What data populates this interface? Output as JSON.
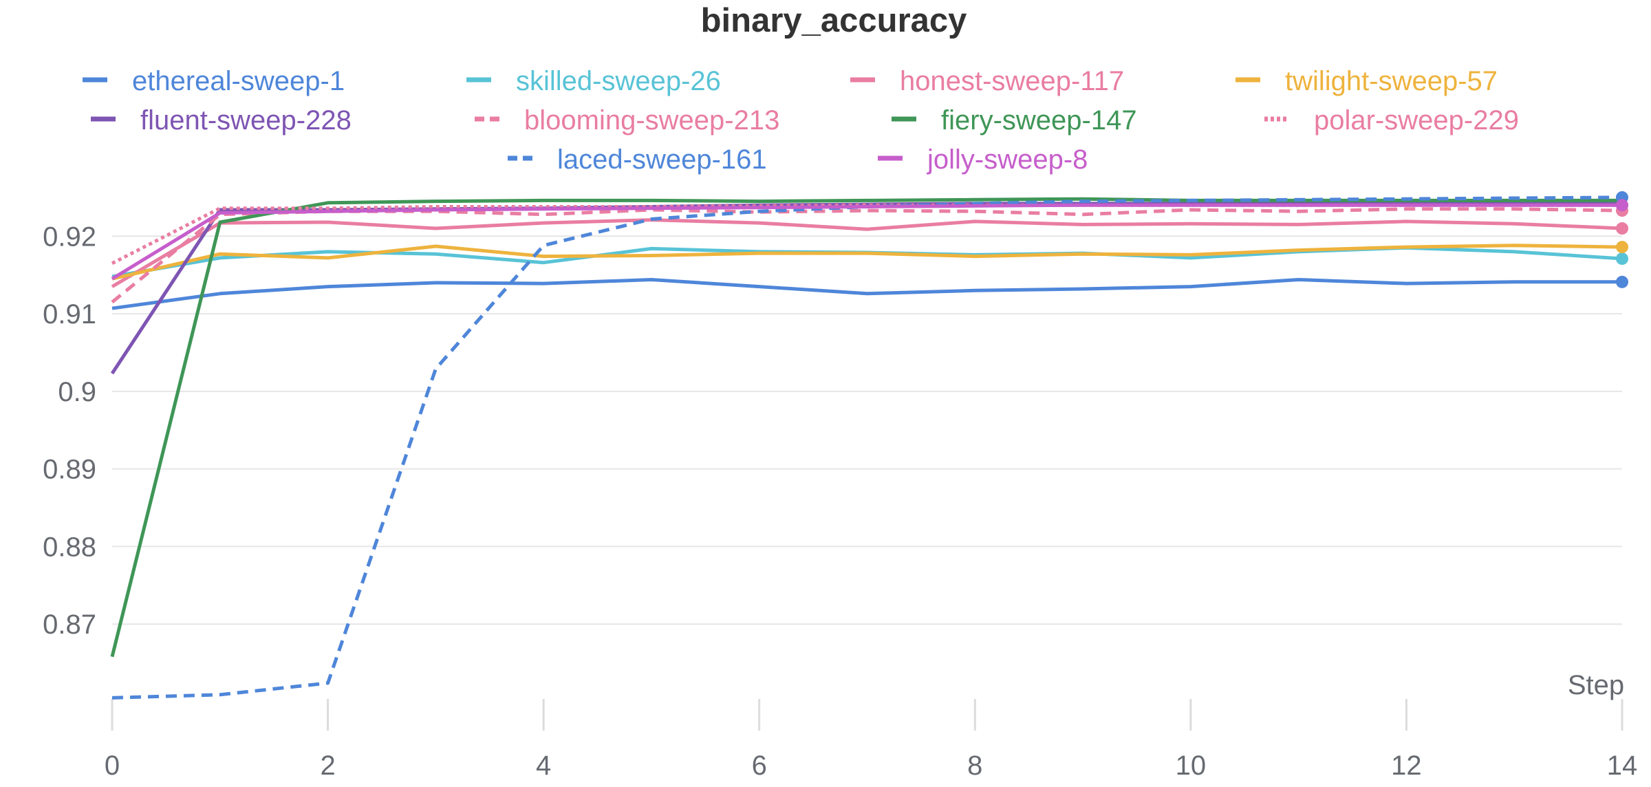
{
  "chart_data": {
    "type": "line",
    "title": "binary_accuracy",
    "xlabel": "Step",
    "ylabel": "",
    "xlim": [
      0,
      14
    ],
    "ylim": [
      0.86,
      0.9265
    ],
    "xticks": [
      0,
      2,
      4,
      6,
      8,
      10,
      12,
      14
    ],
    "yticks": [
      0.87,
      0.88,
      0.89,
      0.9,
      0.91,
      0.92
    ],
    "ytick_labels": [
      "0.87",
      "0.88",
      "0.89",
      "0.9",
      "0.91",
      "0.92"
    ],
    "grid": true,
    "legend_position": "top",
    "x": [
      0,
      1,
      2,
      3,
      4,
      5,
      6,
      7,
      8,
      9,
      10,
      11,
      12,
      13,
      14
    ],
    "series": [
      {
        "name": "ethereal-sweep-1",
        "color": "#4e86d9",
        "dash": "solid",
        "end_marker": true,
        "values": [
          0.9107,
          0.9126,
          0.9135,
          0.914,
          0.9139,
          0.9144,
          0.9135,
          0.9126,
          0.913,
          0.9132,
          0.9135,
          0.9144,
          0.9139,
          0.9141,
          0.9141
        ]
      },
      {
        "name": "skilled-sweep-26",
        "color": "#58c3d6",
        "dash": "solid",
        "end_marker": true,
        "values": [
          0.9148,
          0.9172,
          0.918,
          0.9177,
          0.9166,
          0.9184,
          0.918,
          0.9179,
          0.9176,
          0.9178,
          0.9172,
          0.918,
          0.9185,
          0.918,
          0.9171
        ]
      },
      {
        "name": "honest-sweep-117",
        "color": "#e97da2",
        "dash": "solid",
        "end_marker": true,
        "values": [
          0.9135,
          0.9217,
          0.9218,
          0.921,
          0.9217,
          0.9221,
          0.9217,
          0.9209,
          0.9219,
          0.9215,
          0.9216,
          0.9215,
          0.9219,
          0.9216,
          0.921
        ]
      },
      {
        "name": "twilight-sweep-57",
        "color": "#eeb33d",
        "dash": "solid",
        "end_marker": true,
        "values": [
          0.9145,
          0.9177,
          0.9172,
          0.9187,
          0.9174,
          0.9175,
          0.9178,
          0.9178,
          0.9174,
          0.9177,
          0.9176,
          0.9182,
          0.9186,
          0.9188,
          0.9186
        ]
      },
      {
        "name": "fluent-sweep-228",
        "color": "#7e55b3",
        "dash": "solid",
        "end_marker": false,
        "values": [
          0.9023,
          0.9234,
          0.9234,
          0.9235,
          0.9236,
          0.9238,
          0.924,
          0.9241,
          0.9242,
          0.9242,
          0.9242,
          0.9242,
          0.9242,
          0.9242,
          0.9242
        ]
      },
      {
        "name": "blooming-sweep-213",
        "color": "#e97da2",
        "dash": "dash",
        "end_marker": true,
        "values": [
          0.9115,
          0.9228,
          0.9232,
          0.9232,
          0.9228,
          0.9234,
          0.9231,
          0.9233,
          0.9232,
          0.9228,
          0.9234,
          0.9232,
          0.9235,
          0.9235,
          0.9233
        ]
      },
      {
        "name": "fiery-sweep-147",
        "color": "#3f9657",
        "dash": "solid",
        "end_marker": false,
        "values": [
          0.8658,
          0.9218,
          0.9243,
          0.9245,
          0.9246,
          0.9246,
          0.9245,
          0.9246,
          0.9247,
          0.9248,
          0.9246,
          0.9246,
          0.9246,
          0.9246,
          0.9246
        ]
      },
      {
        "name": "polar-sweep-229",
        "color": "#e97da2",
        "dash": "dot",
        "end_marker": true,
        "values": [
          0.9165,
          0.9236,
          0.9236,
          0.9238,
          0.9238,
          0.9238,
          0.9239,
          0.924,
          0.924,
          0.924,
          0.924,
          0.924,
          0.924,
          0.924,
          0.924
        ]
      },
      {
        "name": "laced-sweep-161",
        "color": "#4e86d9",
        "dash": "dash",
        "end_marker": true,
        "values": [
          0.8605,
          0.8609,
          0.8624,
          0.9029,
          0.9188,
          0.9222,
          0.9232,
          0.9238,
          0.9242,
          0.9245,
          0.9246,
          0.9247,
          0.9248,
          0.9249,
          0.925
        ]
      },
      {
        "name": "jolly-sweep-8",
        "color": "#c65ecb",
        "dash": "solid",
        "end_marker": true,
        "values": [
          0.9145,
          0.923,
          0.9232,
          0.9234,
          0.9235,
          0.9236,
          0.9237,
          0.9238,
          0.9239,
          0.924,
          0.924,
          0.924,
          0.924,
          0.924,
          0.924
        ]
      }
    ]
  }
}
